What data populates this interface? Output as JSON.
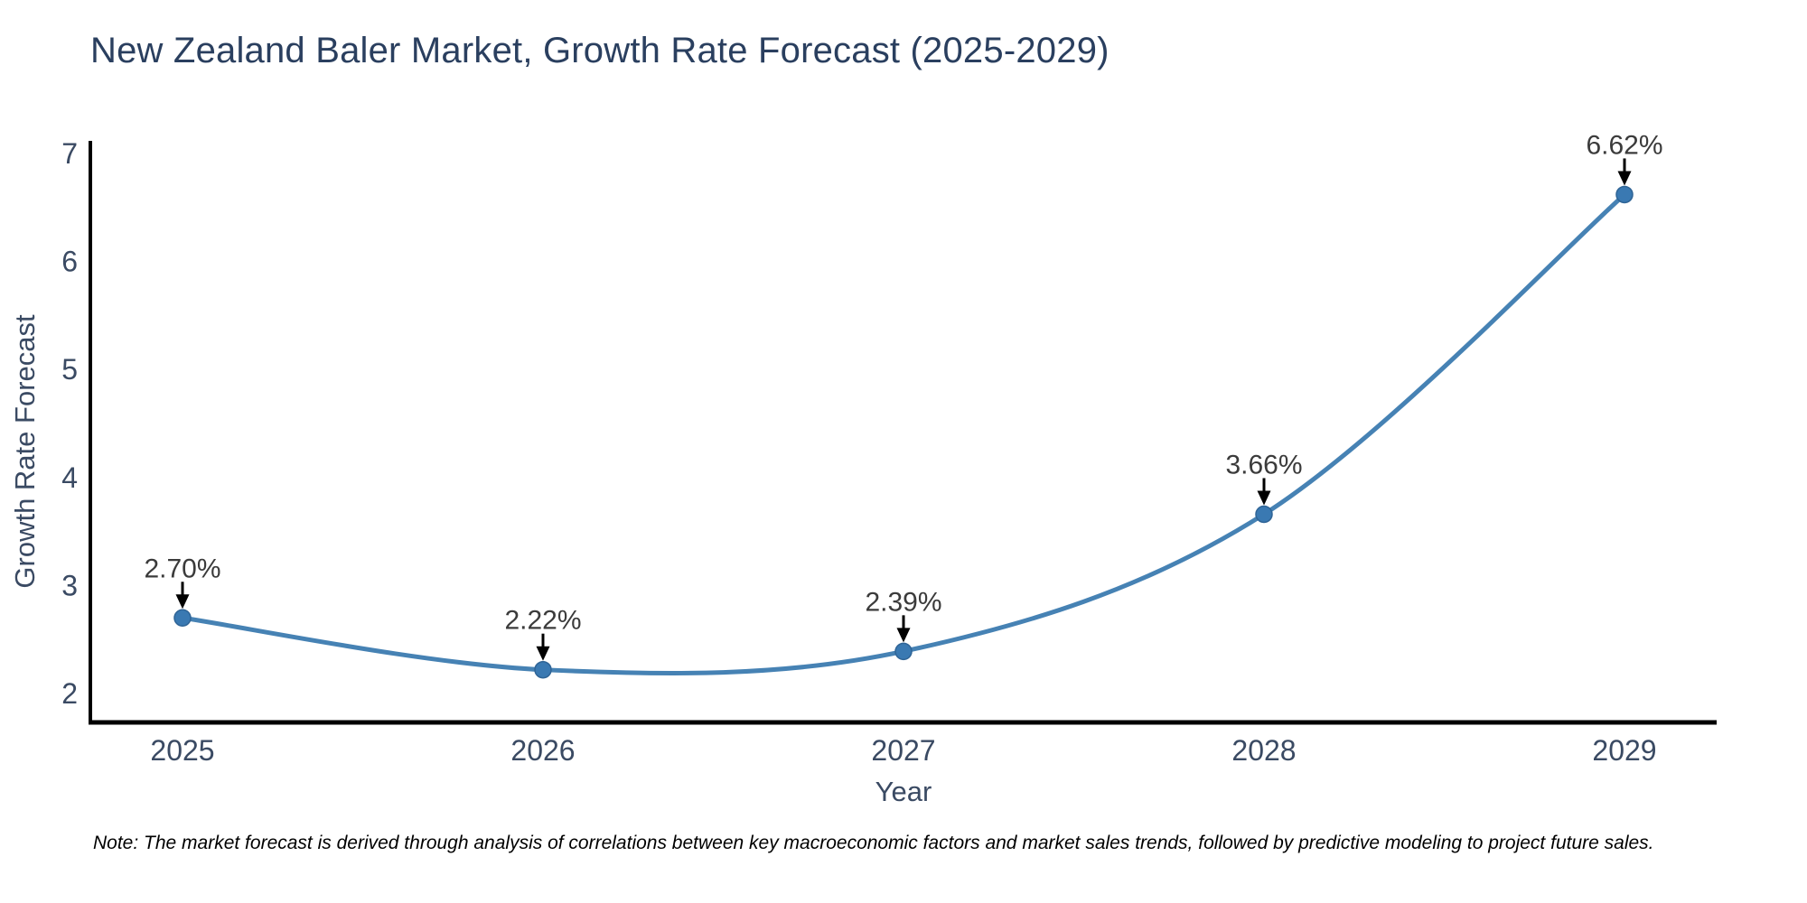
{
  "figure": {
    "note": "Note: The market forecast is derived through analysis of correlations between key macroeconomic factors and market sales trends, followed by predictive modeling to project future sales."
  },
  "chart_data": {
    "type": "line",
    "title": "New Zealand Baler Market, Growth Rate Forecast (2025-2029)",
    "xlabel": "Year",
    "ylabel": "Growth Rate Forecast",
    "categories": [
      "2025",
      "2026",
      "2027",
      "2028",
      "2029"
    ],
    "values": [
      2.7,
      2.22,
      2.39,
      3.66,
      6.62
    ],
    "point_labels": [
      "2.70%",
      "2.22%",
      "2.39%",
      "3.66%",
      "6.62%"
    ],
    "yticks": [
      2,
      3,
      4,
      5,
      6,
      7
    ],
    "ylim": [
      2,
      7
    ],
    "grid": false,
    "legend": "none",
    "smooth_line": true,
    "marker_shape": "circle",
    "annotation_arrow": "down",
    "colors": {
      "line": "#4682b4",
      "marker_fill": "#3a79b2",
      "marker_edge": "#2f6496",
      "axis": "#000000",
      "title_text": "#2a3f5f",
      "tick_text": "#3a4a63",
      "axis_label_text": "#3a4a63",
      "annotation_text": "#3b3b3b",
      "arrow": "#000000",
      "note_text": "#000000",
      "background": "#ffffff"
    }
  }
}
